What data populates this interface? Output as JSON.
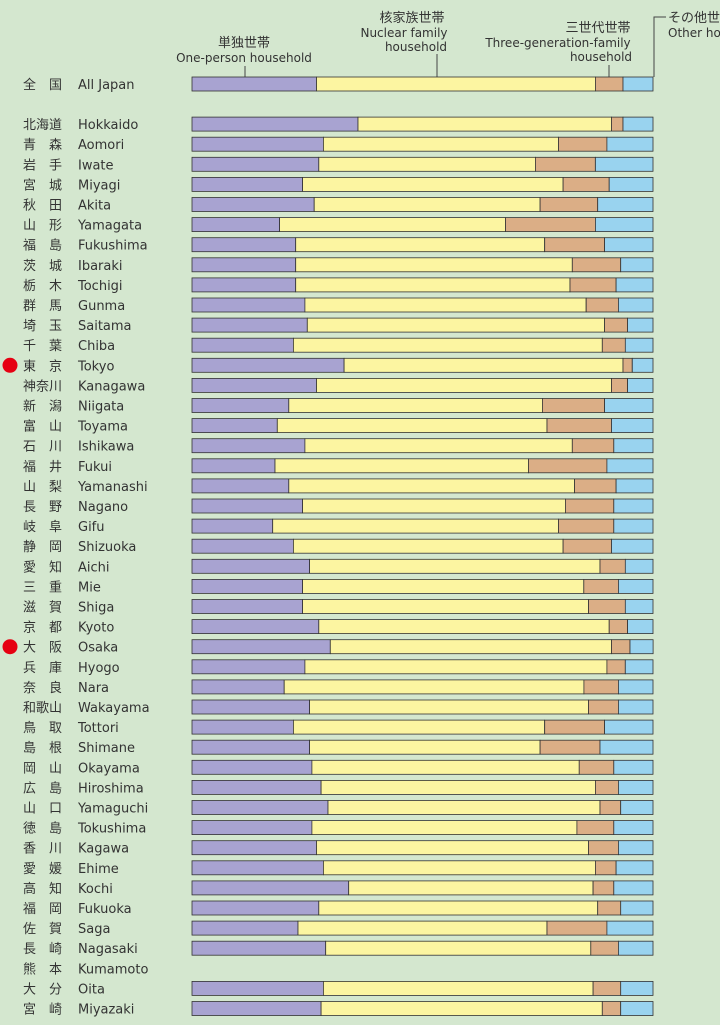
{
  "chart_data": {
    "type": "bar",
    "orientation": "horizontal",
    "stacked": true,
    "normalized": true,
    "xlim": [
      0,
      1
    ],
    "grid": false,
    "legend": "column headers above bars with leader lines",
    "series": [
      {
        "name": "単独世帯",
        "name_en": "One-person household",
        "color": "#a8a3d1"
      },
      {
        "name": "核家族世帯",
        "name_en": "Nuclear family household",
        "color": "#fcf5a1"
      },
      {
        "name": "三世代世帯",
        "name_en": "Three-generation-family household",
        "color": "#dbae86"
      },
      {
        "name": "その他世帯",
        "name_en": "Other household",
        "color": "#99d3ef"
      }
    ],
    "markers": {
      "color": "#e60012",
      "highlighted": [
        "Tokyo",
        "Osaka"
      ]
    },
    "rows": [
      {
        "jp": "全　国",
        "en": "All Japan",
        "values": [
          0.27,
          0.605,
          0.06,
          0.065
        ],
        "gap_after": true
      },
      {
        "jp": "北海道",
        "en": "Hokkaido",
        "values": [
          0.36,
          0.55,
          0.025,
          0.065
        ]
      },
      {
        "jp": "青　森",
        "en": "Aomori",
        "values": [
          0.285,
          0.51,
          0.105,
          0.1
        ]
      },
      {
        "jp": "岩　手",
        "en": "Iwate",
        "values": [
          0.275,
          0.47,
          0.13,
          0.125
        ]
      },
      {
        "jp": "宮　城",
        "en": "Miyagi",
        "values": [
          0.24,
          0.565,
          0.1,
          0.095
        ]
      },
      {
        "jp": "秋　田",
        "en": "Akita",
        "values": [
          0.265,
          0.49,
          0.125,
          0.12
        ]
      },
      {
        "jp": "山　形",
        "en": "Yamagata",
        "values": [
          0.19,
          0.49,
          0.195,
          0.125
        ]
      },
      {
        "jp": "福　島",
        "en": "Fukushima",
        "values": [
          0.225,
          0.54,
          0.13,
          0.105
        ]
      },
      {
        "jp": "茨　城",
        "en": "Ibaraki",
        "values": [
          0.225,
          0.6,
          0.105,
          0.07
        ]
      },
      {
        "jp": "栃　木",
        "en": "Tochigi",
        "values": [
          0.225,
          0.595,
          0.1,
          0.08
        ]
      },
      {
        "jp": "群　馬",
        "en": "Gunma",
        "values": [
          0.245,
          0.61,
          0.07,
          0.075
        ]
      },
      {
        "jp": "埼　玉",
        "en": "Saitama",
        "values": [
          0.25,
          0.645,
          0.05,
          0.055
        ]
      },
      {
        "jp": "千　葉",
        "en": "Chiba",
        "values": [
          0.22,
          0.67,
          0.05,
          0.06
        ]
      },
      {
        "jp": "東　京",
        "en": "Tokyo",
        "values": [
          0.33,
          0.605,
          0.02,
          0.045
        ],
        "marker": true
      },
      {
        "jp": "神奈川",
        "en": "Kanagawa",
        "values": [
          0.27,
          0.64,
          0.035,
          0.055
        ]
      },
      {
        "jp": "新　潟",
        "en": "Niigata",
        "values": [
          0.21,
          0.55,
          0.135,
          0.105
        ]
      },
      {
        "jp": "富　山",
        "en": "Toyama",
        "values": [
          0.185,
          0.585,
          0.14,
          0.09
        ]
      },
      {
        "jp": "石　川",
        "en": "Ishikawa",
        "values": [
          0.245,
          0.58,
          0.09,
          0.085
        ]
      },
      {
        "jp": "福　井",
        "en": "Fukui",
        "values": [
          0.18,
          0.55,
          0.17,
          0.1
        ]
      },
      {
        "jp": "山　梨",
        "en": "Yamanashi",
        "values": [
          0.21,
          0.62,
          0.09,
          0.08
        ]
      },
      {
        "jp": "長　野",
        "en": "Nagano",
        "values": [
          0.24,
          0.57,
          0.105,
          0.085
        ]
      },
      {
        "jp": "岐　阜",
        "en": "Gifu",
        "values": [
          0.175,
          0.62,
          0.12,
          0.085
        ]
      },
      {
        "jp": "静　岡",
        "en": "Shizuoka",
        "values": [
          0.22,
          0.585,
          0.105,
          0.09
        ]
      },
      {
        "jp": "愛　知",
        "en": "Aichi",
        "values": [
          0.255,
          0.63,
          0.055,
          0.06
        ]
      },
      {
        "jp": "三　重",
        "en": "Mie",
        "values": [
          0.24,
          0.61,
          0.075,
          0.075
        ]
      },
      {
        "jp": "滋　賀",
        "en": "Shiga",
        "values": [
          0.24,
          0.62,
          0.08,
          0.06
        ]
      },
      {
        "jp": "京　都",
        "en": "Kyoto",
        "values": [
          0.275,
          0.63,
          0.04,
          0.055
        ]
      },
      {
        "jp": "大　阪",
        "en": "Osaka",
        "values": [
          0.3,
          0.61,
          0.04,
          0.05
        ],
        "marker": true
      },
      {
        "jp": "兵　庫",
        "en": "Hyogo",
        "values": [
          0.245,
          0.655,
          0.04,
          0.06
        ]
      },
      {
        "jp": "奈　良",
        "en": "Nara",
        "values": [
          0.2,
          0.65,
          0.075,
          0.075
        ]
      },
      {
        "jp": "和歌山",
        "en": "Wakayama",
        "values": [
          0.255,
          0.605,
          0.065,
          0.075
        ]
      },
      {
        "jp": "鳥　取",
        "en": "Tottori",
        "values": [
          0.22,
          0.545,
          0.13,
          0.105
        ]
      },
      {
        "jp": "島　根",
        "en": "Shimane",
        "values": [
          0.255,
          0.5,
          0.13,
          0.115
        ]
      },
      {
        "jp": "岡　山",
        "en": "Okayama",
        "values": [
          0.26,
          0.58,
          0.075,
          0.085
        ]
      },
      {
        "jp": "広　島",
        "en": "Hiroshima",
        "values": [
          0.28,
          0.595,
          0.05,
          0.075
        ]
      },
      {
        "jp": "山　口",
        "en": "Yamaguchi",
        "values": [
          0.295,
          0.59,
          0.045,
          0.07
        ]
      },
      {
        "jp": "徳　島",
        "en": "Tokushima",
        "values": [
          0.26,
          0.575,
          0.08,
          0.085
        ]
      },
      {
        "jp": "香　川",
        "en": "Kagawa",
        "values": [
          0.27,
          0.59,
          0.065,
          0.075
        ]
      },
      {
        "jp": "愛　媛",
        "en": "Ehime",
        "values": [
          0.285,
          0.59,
          0.045,
          0.08
        ]
      },
      {
        "jp": "高　知",
        "en": "Kochi",
        "values": [
          0.34,
          0.53,
          0.045,
          0.085
        ]
      },
      {
        "jp": "福　岡",
        "en": "Fukuoka",
        "values": [
          0.275,
          0.605,
          0.05,
          0.07
        ]
      },
      {
        "jp": "佐　賀",
        "en": "Saga",
        "values": [
          0.23,
          0.54,
          0.13,
          0.1
        ]
      },
      {
        "jp": "長　崎",
        "en": "Nagasaki",
        "values": [
          0.29,
          0.575,
          0.06,
          0.075
        ]
      },
      {
        "jp": "熊　本",
        "en": "Kumamoto",
        "values": null
      },
      {
        "jp": "大　分",
        "en": "Oita",
        "values": [
          0.285,
          0.585,
          0.06,
          0.07
        ]
      },
      {
        "jp": "宮　崎",
        "en": "Miyazaki",
        "values": [
          0.28,
          0.61,
          0.04,
          0.07
        ]
      }
    ]
  }
}
